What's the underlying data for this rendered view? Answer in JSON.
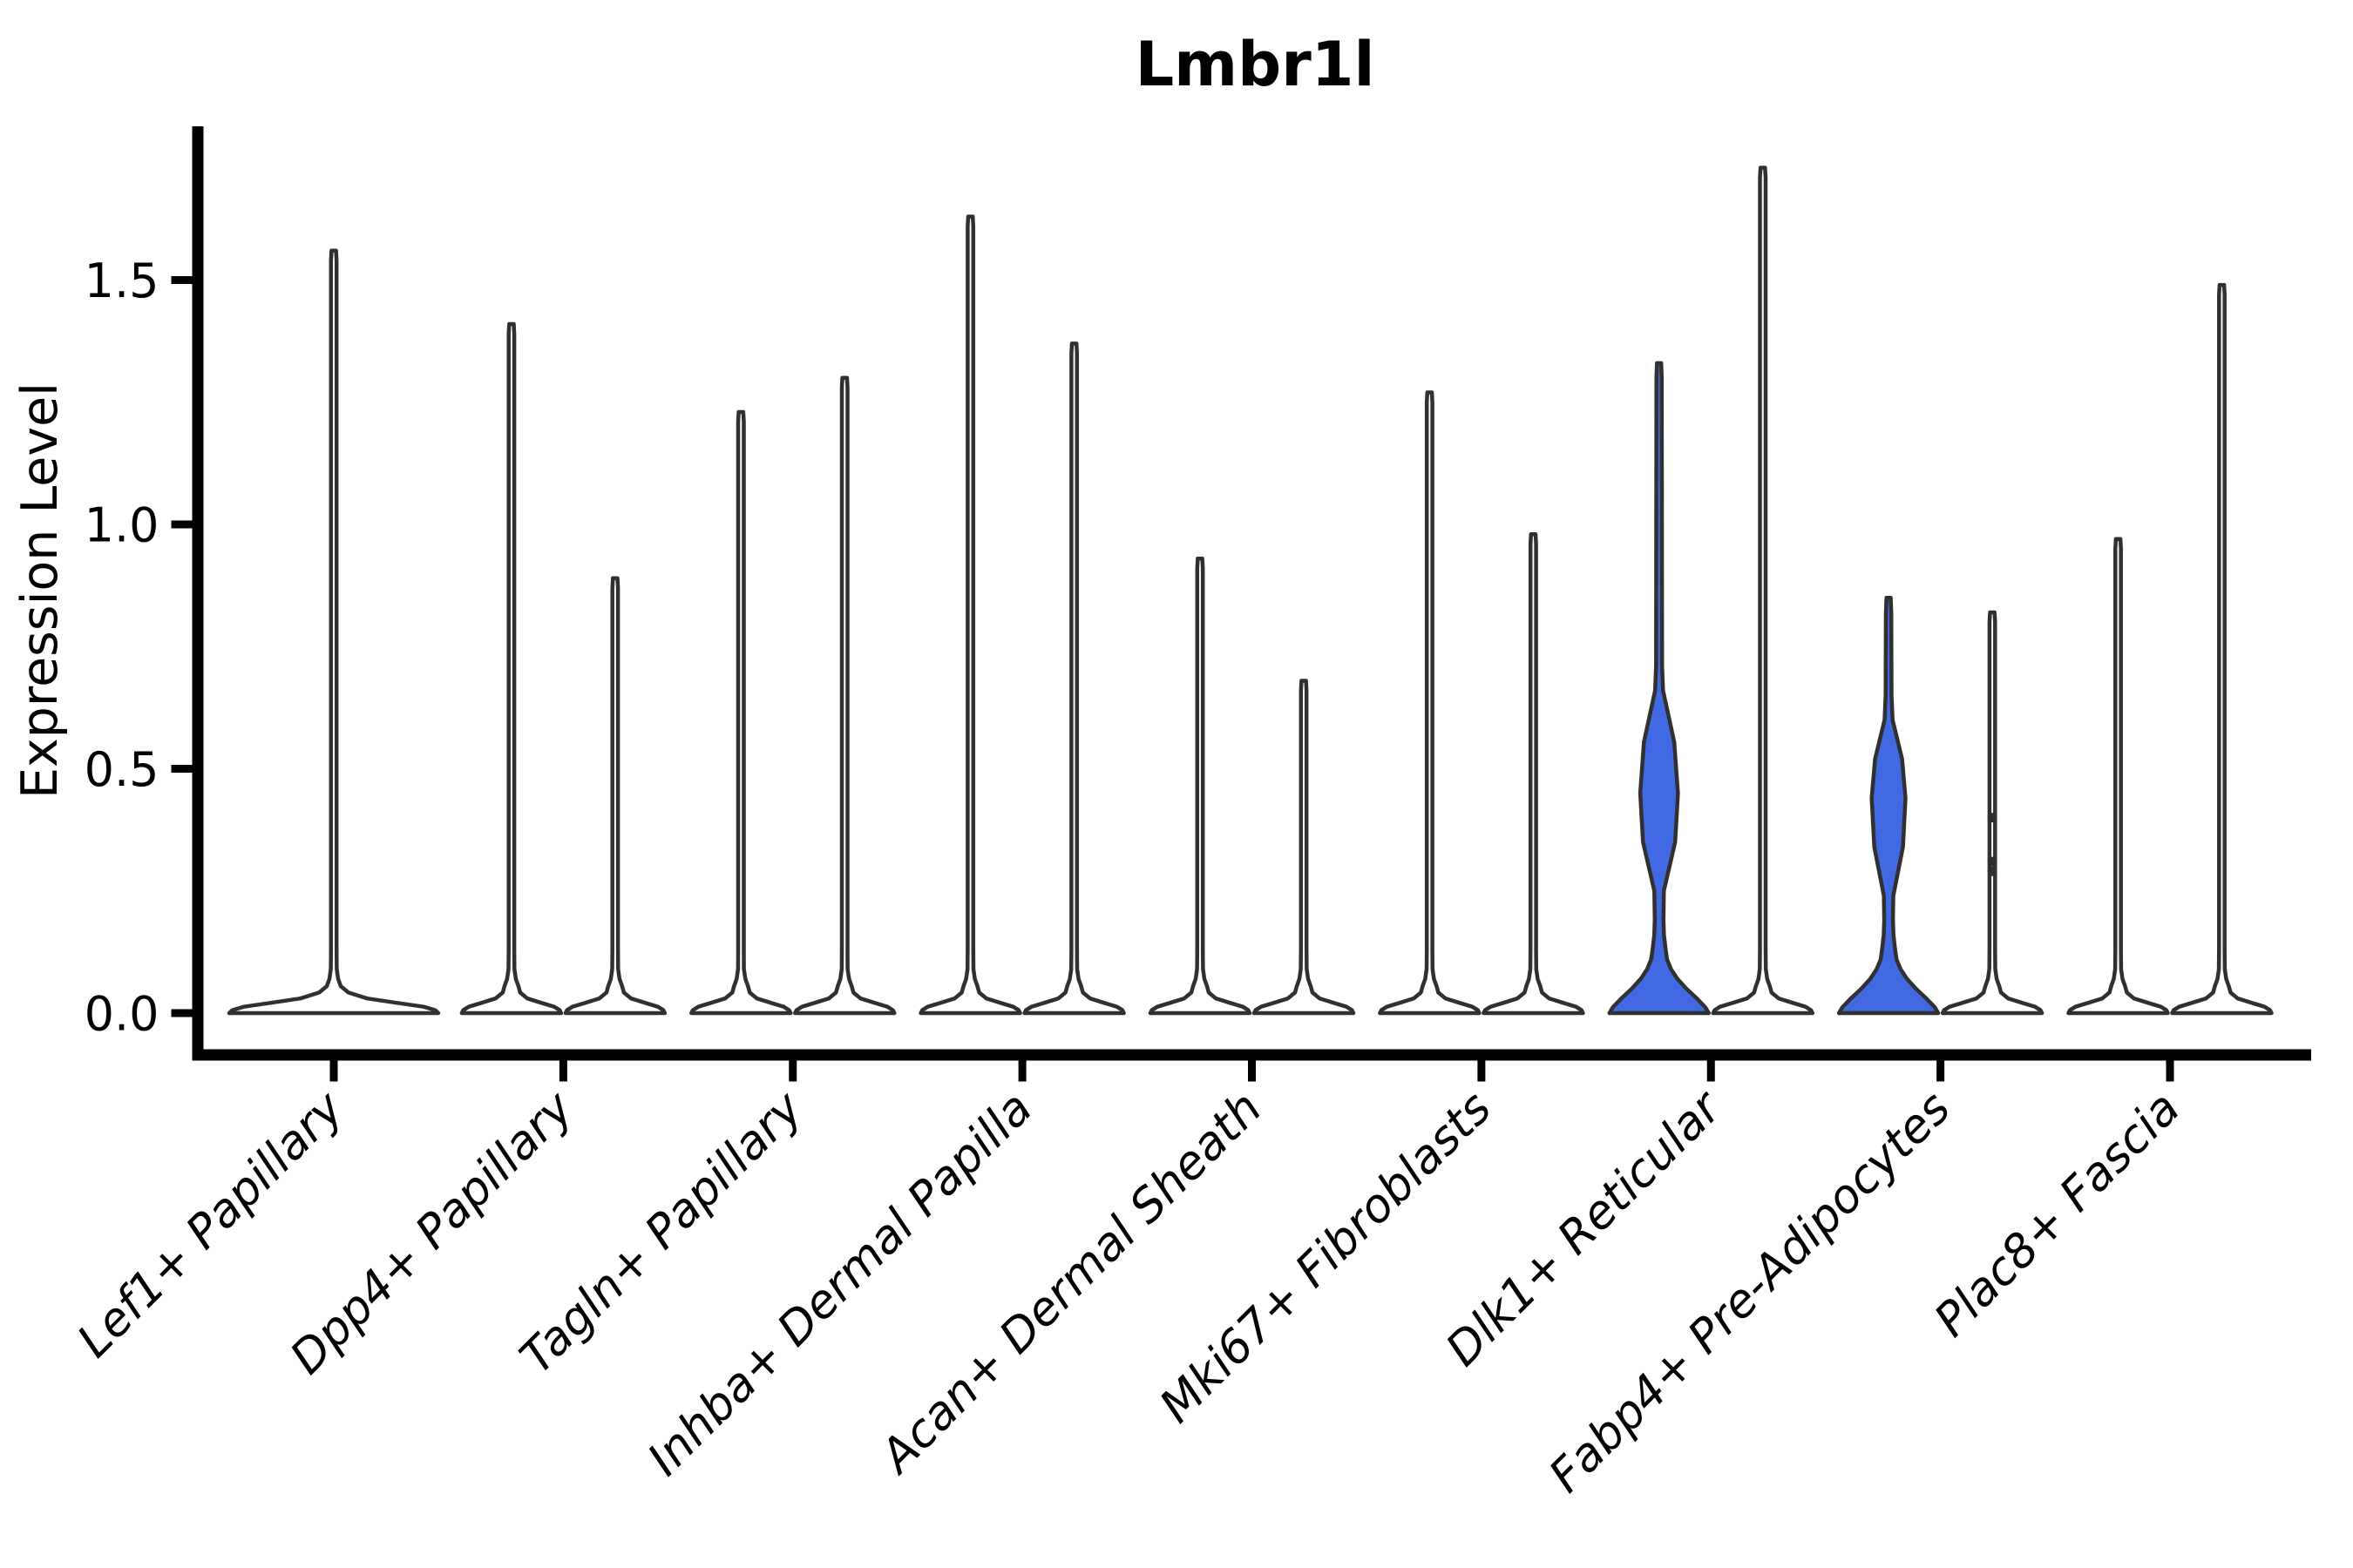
{
  "figure": {
    "title": "Lmbr1l"
  },
  "chart_data": {
    "type": "violin",
    "title": "Lmbr1l",
    "xlabel": "",
    "ylabel": "Expression Level",
    "ylim": [
      -0.09,
      1.82
    ],
    "yticks": [
      0.0,
      0.5,
      1.0,
      1.5
    ],
    "grid": false,
    "legend": "none",
    "colors": {
      "outline": "#303030",
      "violin_fill_default": "#ffffff",
      "violin_fill_highlight": "#4169E1",
      "axis": "#000000"
    },
    "description": "Grouped violin plot of Lmbr1l expression per fibroblast cluster; most violins collapse to a flat base at 0 with a thin spike to the max expressed cell; the left violins of Dlk1+ Reticular and Fabp4+ Pre-Adipocytes are highlighted blue with visible density bulges around 0.45.",
    "categories": [
      {
        "label": "Lef1+ Papillary",
        "violins": [
          {
            "group": "single",
            "shape": "spike",
            "fill": "default",
            "width": "double",
            "max": 1.56
          }
        ]
      },
      {
        "label": "Dpp4+ Papillary",
        "violins": [
          {
            "group": "left",
            "shape": "spike",
            "fill": "default",
            "max": 1.41
          },
          {
            "group": "right",
            "shape": "spike",
            "fill": "default",
            "max": 0.89
          }
        ]
      },
      {
        "label": "Tagln+ Papillary",
        "violins": [
          {
            "group": "left",
            "shape": "spike",
            "fill": "default",
            "max": 1.23
          },
          {
            "group": "right",
            "shape": "spike",
            "fill": "default",
            "max": 1.3
          }
        ]
      },
      {
        "label": "Inhba+ Dermal Papilla",
        "violins": [
          {
            "group": "left",
            "shape": "spike",
            "fill": "default",
            "max": 1.63
          },
          {
            "group": "right",
            "shape": "spike",
            "fill": "default",
            "max": 1.37
          }
        ]
      },
      {
        "label": "Acan+ Dermal Sheath",
        "violins": [
          {
            "group": "left",
            "shape": "spike",
            "fill": "default",
            "max": 0.93
          },
          {
            "group": "right",
            "shape": "spike",
            "fill": "default",
            "max": 0.68
          }
        ]
      },
      {
        "label": "Mki67+ Fibroblasts",
        "violins": [
          {
            "group": "left",
            "shape": "spike",
            "fill": "default",
            "max": 1.27
          },
          {
            "group": "right",
            "shape": "spike",
            "fill": "default",
            "max": 0.98
          }
        ]
      },
      {
        "label": "Dlk1+ Reticular",
        "violins": [
          {
            "group": "left",
            "shape": "bulged",
            "fill": "highlight",
            "max": 1.33,
            "bulge": {
              "bottom": 0.25,
              "center": 0.45,
              "top": 0.66,
              "rel_width": 0.19
            }
          },
          {
            "group": "right",
            "shape": "spike",
            "fill": "default",
            "max": 1.73
          }
        ]
      },
      {
        "label": "Fabp4+ Pre-Adipocytes",
        "violins": [
          {
            "group": "left",
            "shape": "bulged",
            "fill": "highlight",
            "max": 0.85,
            "bulge": {
              "bottom": 0.24,
              "center": 0.44,
              "top": 0.6,
              "rel_width": 0.17
            }
          },
          {
            "group": "right",
            "shape": "spike",
            "fill": "default",
            "max": 0.82,
            "points": [
              0.4,
              0.31,
              0.29
            ]
          }
        ]
      },
      {
        "label": "Plac8+ Fascia",
        "violins": [
          {
            "group": "left",
            "shape": "spike",
            "fill": "default",
            "max": 0.97
          },
          {
            "group": "right",
            "shape": "spike",
            "fill": "default",
            "max": 1.49
          }
        ]
      }
    ]
  }
}
